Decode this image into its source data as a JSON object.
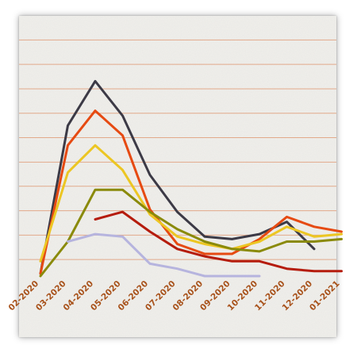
{
  "chart_data": {
    "type": "line",
    "categories": [
      "02-2020",
      "03-2020",
      "04-2020",
      "05-2020",
      "06-2020",
      "07-2020",
      "08-2020",
      "09-2020",
      "10-2020",
      "11-2020",
      "12-2020",
      "01-2021"
    ],
    "ylim": [
      0,
      100
    ],
    "grid": true,
    "gridlines": [
      6.7,
      16.6,
      26.5,
      36.4,
      46.2,
      56.1,
      66.0,
      75.9,
      85.8,
      95.7
    ],
    "series": [
      {
        "color": "#3c3a46",
        "values": [
          1,
          61,
          79,
          65,
          41,
          26,
          16,
          15,
          17,
          22,
          11,
          null
        ]
      },
      {
        "color": "#e64a12",
        "values": [
          1,
          53,
          67,
          57,
          27,
          13,
          9,
          9,
          15,
          24,
          20,
          18
        ]
      },
      {
        "color": "#ecc623",
        "values": [
          6,
          42,
          53,
          43,
          25,
          16,
          13,
          11,
          14,
          20,
          16,
          17
        ]
      },
      {
        "color": "#8a8a0a",
        "values": [
          0,
          14,
          35,
          35,
          26,
          19,
          14,
          11,
          10,
          14,
          14,
          15
        ]
      },
      {
        "color": "#b51c0d",
        "values": [
          null,
          null,
          23,
          26,
          18,
          11,
          8,
          6,
          6,
          3,
          2,
          2
        ]
      },
      {
        "color": "#b6b4de",
        "values": [
          null,
          14,
          17,
          16,
          5,
          3,
          0,
          0,
          0,
          null,
          null,
          null
        ]
      }
    ],
    "tick_color": "#a8521b",
    "title": "",
    "xlabel": "",
    "ylabel": ""
  }
}
